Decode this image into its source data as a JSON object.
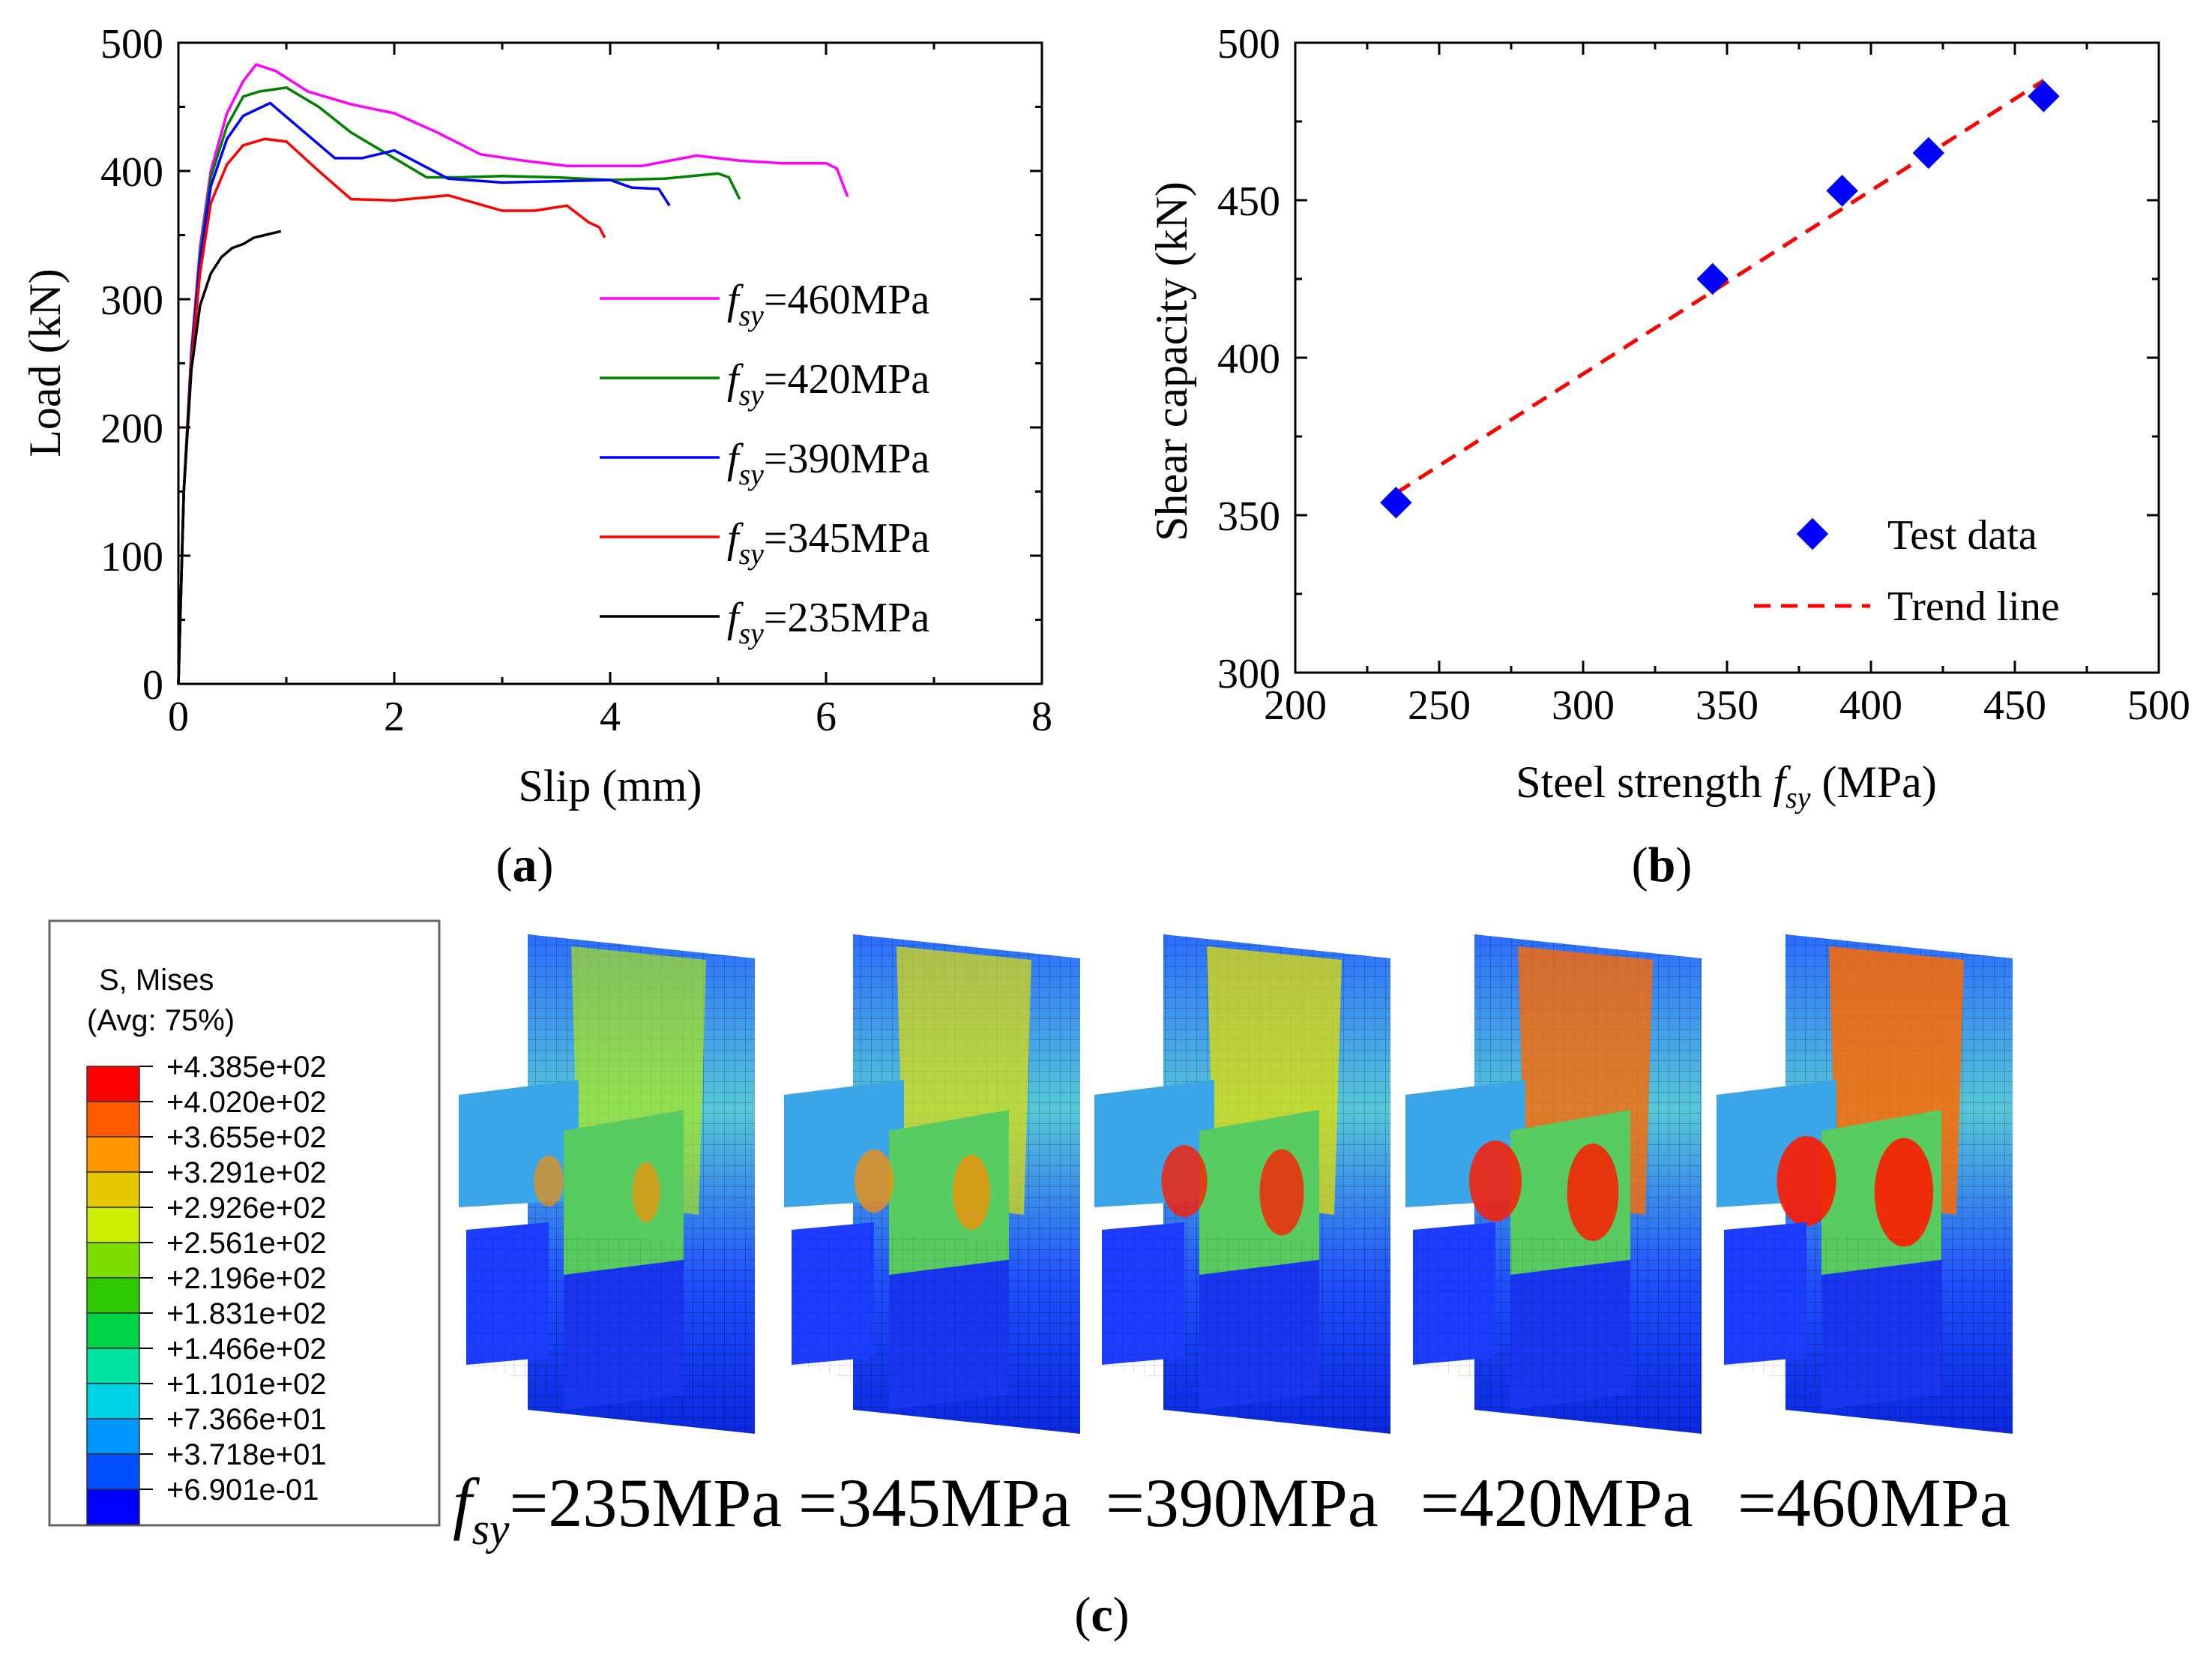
{
  "chart_data": [
    {
      "type": "line",
      "panel": "(a)",
      "panel_letter": "a",
      "xlabel": "Slip (mm)",
      "ylabel": "Load (kN)",
      "xlim": [
        0,
        8
      ],
      "ylim": [
        0,
        500
      ],
      "xticks": [
        "0",
        "2",
        "4",
        "6",
        "8"
      ],
      "yticks": [
        "0",
        "100",
        "200",
        "300",
        "400",
        "500"
      ],
      "legend_prefix": "f",
      "legend_sub": "sy",
      "series": [
        {
          "name": "=460MPa",
          "color": "#ff00ff",
          "x": [
            0,
            0.05,
            0.12,
            0.2,
            0.3,
            0.45,
            0.6,
            0.72,
            0.9,
            1.2,
            1.6,
            2.0,
            2.4,
            2.8,
            3.2,
            3.6,
            4.0,
            4.3,
            4.8,
            5.2,
            5.6,
            6.0,
            6.1,
            6.2
          ],
          "y": [
            0,
            150,
            260,
            340,
            400,
            445,
            470,
            483,
            478,
            462,
            452,
            445,
            430,
            413,
            408,
            404,
            404,
            404,
            412,
            408,
            406,
            406,
            402,
            380
          ]
        },
        {
          "name": "=420MPa",
          "color": "#008000",
          "x": [
            0,
            0.05,
            0.12,
            0.2,
            0.3,
            0.45,
            0.6,
            0.75,
            1.0,
            1.3,
            1.6,
            2.0,
            2.3,
            2.6,
            3.0,
            3.5,
            4.0,
            4.5,
            5.0,
            5.1,
            5.2
          ],
          "y": [
            0,
            150,
            258,
            335,
            395,
            435,
            458,
            462,
            465,
            450,
            430,
            410,
            395,
            395,
            396,
            395,
            393,
            394,
            398,
            395,
            378
          ]
        },
        {
          "name": "=390MPa",
          "color": "#0000ff",
          "x": [
            0,
            0.05,
            0.12,
            0.2,
            0.3,
            0.45,
            0.6,
            0.85,
            1.1,
            1.45,
            1.7,
            2.0,
            2.5,
            3.0,
            3.5,
            4.0,
            4.2,
            4.45,
            4.55
          ],
          "y": [
            0,
            150,
            255,
            330,
            388,
            425,
            443,
            453,
            435,
            410,
            410,
            416,
            394,
            391,
            392,
            393,
            387,
            386,
            373
          ]
        },
        {
          "name": "=345MPa",
          "color": "#ff0000",
          "x": [
            0,
            0.05,
            0.12,
            0.2,
            0.3,
            0.45,
            0.6,
            0.8,
            1.0,
            1.3,
            1.6,
            2.0,
            2.5,
            3.0,
            3.3,
            3.6,
            3.8,
            3.9,
            3.95
          ],
          "y": [
            0,
            150,
            250,
            320,
            375,
            405,
            420,
            425,
            423,
            400,
            378,
            377,
            381,
            369,
            369,
            373,
            360,
            356,
            348
          ]
        },
        {
          "name": "=235MPa",
          "color": "#000000",
          "x": [
            0,
            0.05,
            0.12,
            0.2,
            0.3,
            0.4,
            0.5,
            0.6,
            0.7,
            0.8,
            0.9,
            0.95
          ],
          "y": [
            0,
            150,
            245,
            295,
            320,
            333,
            340,
            343,
            348,
            350,
            352,
            353
          ]
        }
      ]
    },
    {
      "type": "scatter",
      "panel": "(b)",
      "panel_letter": "b",
      "xlabel_prefix": "Steel strength ",
      "xlabel_f": "f",
      "xlabel_sub": "sy",
      "xlabel_suffix": " (MPa)",
      "ylabel": "Shear capacity (kN)",
      "xlim": [
        200,
        500
      ],
      "ylim": [
        300,
        500
      ],
      "xticks": [
        "200",
        "250",
        "300",
        "350",
        "400",
        "450",
        "500"
      ],
      "yticks": [
        "300",
        "350",
        "400",
        "450",
        "500"
      ],
      "legend": [
        "Test data",
        "Trend line"
      ],
      "test_data": {
        "x": [
          235,
          345,
          390,
          420,
          460
        ],
        "y": [
          354,
          425,
          453,
          465,
          483
        ],
        "color": "#0000ff"
      },
      "trend_line": {
        "x": [
          235,
          460
        ],
        "y": [
          357,
          488
        ],
        "color": "#ff0000"
      }
    },
    {
      "type": "heatmap",
      "panel": "(c)",
      "panel_letter": "c",
      "legend_title_1": "S, Mises",
      "legend_title_2": "(Avg: 75%)",
      "colorbar_values": [
        "+4.385e+02",
        "+4.020e+02",
        "+3.655e+02",
        "+3.291e+02",
        "+2.926e+02",
        "+2.561e+02",
        "+2.196e+02",
        "+1.831e+02",
        "+1.466e+02",
        "+1.101e+02",
        "+7.366e+01",
        "+3.718e+01",
        "+6.901e-01"
      ],
      "colorbar_colors": [
        "#ff0000",
        "#ff5a00",
        "#ff9600",
        "#e6c800",
        "#cdf000",
        "#7ddc00",
        "#2ec800",
        "#00d248",
        "#00e1a0",
        "#00d2e6",
        "#0096ff",
        "#0050ff",
        "#0000ff"
      ],
      "model_label_prefix": "f",
      "model_label_sub": "sy",
      "models": [
        "=235MPa",
        "=345MPa",
        "=390MPa",
        "=420MPa",
        "=460MPa"
      ],
      "model_intensity": [
        0.2,
        0.4,
        0.55,
        0.7,
        0.85
      ]
    }
  ]
}
